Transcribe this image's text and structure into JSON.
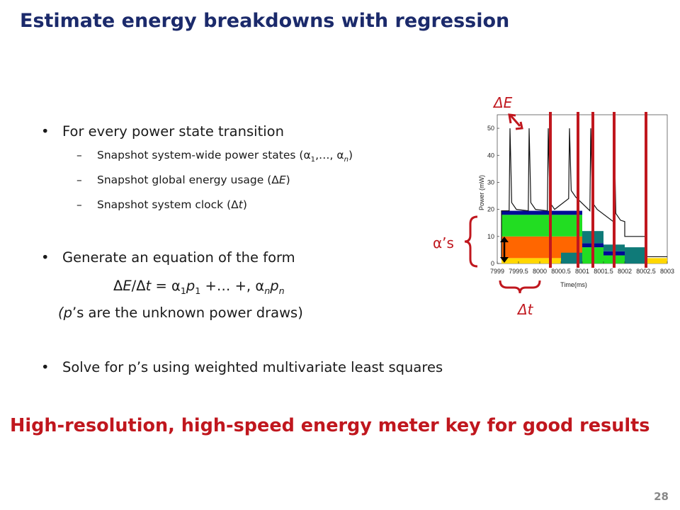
{
  "slide": {
    "title": "Estimate energy breakdowns with regression",
    "bullet1": "For every power state transition",
    "sub1": "Snapshot system-wide power states (α",
    "sub2_a": "Snapshot global energy usage (Δ",
    "sub2_b": "E",
    "sub3_a": "Snapshot system clock (Δ",
    "sub3_b": "t",
    "bullet2": "Generate an equation of the form",
    "note_a": "(p",
    "note_b": "’s are the unknown power draws)",
    "bullet3": "Solve for p’s using weighted multivariate least squares",
    "conclusion": "High-resolution, high-speed energy meter key for good results",
    "page_number": "28"
  },
  "figure": {
    "label_deltaE": "ΔE",
    "label_alphas": "α’s",
    "label_pi": "p",
    "label_pi_sub": "i",
    "label_deltat": "Δt",
    "colors": {
      "accent_red": "#c0171e",
      "title_blue": "#1b2a6b",
      "teal": "#0f7a78",
      "green": "#22dd22",
      "orange": "#ff6600",
      "yellow": "#ffd700",
      "navy": "#000a96"
    }
  },
  "chart_data": {
    "type": "area",
    "xlabel": "Time(ms)",
    "ylabel": "Power (mW)",
    "xlim": [
      7999,
      8003
    ],
    "ylim": [
      0,
      55
    ],
    "x_ticks": [
      "7999",
      "7999.5",
      "8000",
      "8000.5",
      "8001",
      "8001.5",
      "8002",
      "8002.5",
      "8003"
    ],
    "y_ticks": [
      "0",
      "10",
      "20",
      "30",
      "40",
      "50"
    ],
    "stacked_layers": [
      {
        "segments": [
          [
            7999.1,
            8001,
            2
          ],
          [
            8001,
            8002.5,
            2
          ],
          [
            8002.5,
            8003,
            2
          ]
        ],
        "color": "#ffd700"
      },
      {
        "segments": [
          [
            7999.1,
            8001,
            8
          ]
        ],
        "color": "#ff6600"
      },
      {
        "segments": [
          [
            7999.1,
            8001,
            8
          ],
          [
            8001,
            8001.5,
            6
          ],
          [
            8001.5,
            8002,
            3
          ]
        ],
        "color": "#22dd22"
      },
      {
        "segments": [
          [
            7999.1,
            8001,
            1.5
          ],
          [
            8001,
            8001.5,
            1.5
          ],
          [
            8001.5,
            8002,
            1.5
          ]
        ],
        "color": "#000a96"
      },
      {
        "segments": [
          [
            8000.5,
            8001,
            4
          ],
          [
            8001,
            8001.5,
            4.5
          ],
          [
            8001.5,
            8002,
            2.5
          ],
          [
            8002,
            8002.5,
            6
          ]
        ],
        "color": "#0f7a78"
      }
    ],
    "spikes_x": [
      7999.3,
      7999.75,
      8000.2,
      8000.7,
      8001.2,
      8001.75
    ],
    "transitions_x": [
      8000.25,
      8000.9,
      8001.25,
      8001.75,
      8002.5
    ]
  }
}
